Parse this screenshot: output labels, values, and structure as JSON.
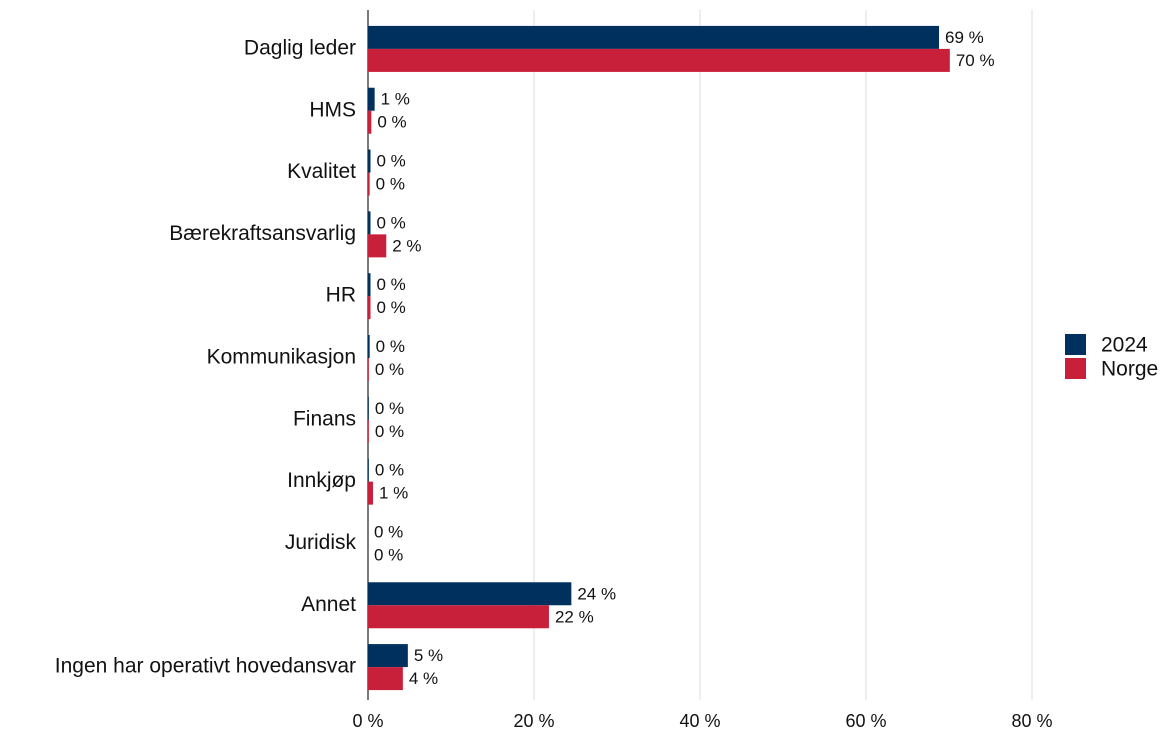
{
  "chart_data": {
    "type": "hbar",
    "categories": [
      "Daglig leder",
      "HMS",
      "Kvalitet",
      "Bærekraftsansvarlig",
      "HR",
      "Kommunikasjon",
      "Finans",
      "Innkjøp",
      "Juridisk",
      "Annet",
      "Ingen har operativt hovedansvar"
    ],
    "series": [
      {
        "name": "2024",
        "color": "#00305e",
        "values": [
          68.8,
          0.8,
          0.3,
          0.3,
          0.3,
          0.2,
          0.1,
          0.1,
          0,
          24.5,
          4.8
        ],
        "value_labels": [
          "69 %",
          "1 %",
          "0 %",
          "0 %",
          "0 %",
          "0 %",
          "0 %",
          "0 %",
          "0 %",
          "24 %",
          "5 %"
        ]
      },
      {
        "name": "Norge",
        "color": "#c8203a",
        "values": [
          70.1,
          0.4,
          0.2,
          2.2,
          0.3,
          0.1,
          0.1,
          0.6,
          0,
          21.8,
          4.2
        ],
        "value_labels": [
          "70 %",
          "0 %",
          "0 %",
          "2 %",
          "0 %",
          "0 %",
          "0 %",
          "1 %",
          "0 %",
          "22 %",
          "4 %"
        ]
      }
    ],
    "xlim": [
      0,
      80
    ],
    "xticks": [
      {
        "value": 0,
        "label": "0 %"
      },
      {
        "value": 20,
        "label": "20 %"
      },
      {
        "value": 40,
        "label": "40 %"
      },
      {
        "value": 60,
        "label": "60 %"
      },
      {
        "value": 80,
        "label": "80 %"
      }
    ],
    "grid": true,
    "legend": "right"
  }
}
